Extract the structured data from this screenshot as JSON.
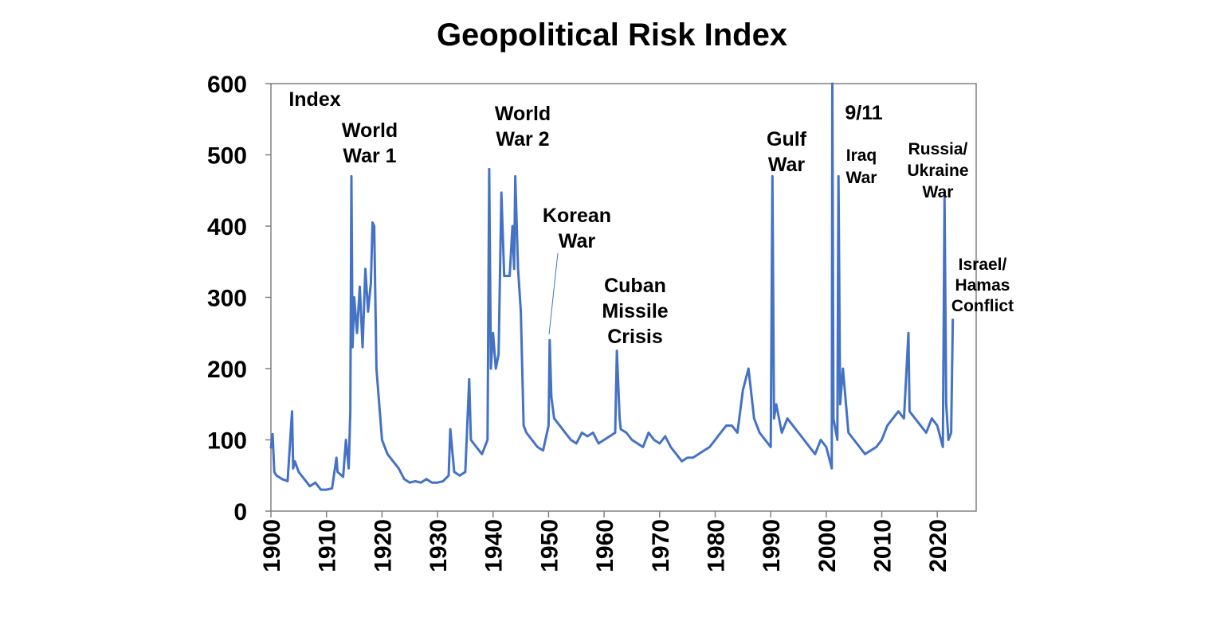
{
  "chart_data": {
    "type": "line",
    "title": "Geopolitical Risk Index",
    "ylabel": "Index",
    "ylim": [
      0,
      600
    ],
    "xlim": [
      1900,
      2027
    ],
    "yticks": [
      "0",
      "100",
      "200",
      "300",
      "400",
      "500",
      "600"
    ],
    "xticks": [
      "1900",
      "1910",
      "1920",
      "1930",
      "1940",
      "1950",
      "1960",
      "1970",
      "1980",
      "1990",
      "2000",
      "2010",
      "2020"
    ],
    "grid": false,
    "line_color": "#4472C4",
    "series": [
      {
        "x": [
          1900,
          1900.3,
          1900.6,
          1901,
          1902,
          1903,
          1903.8,
          1904,
          1904.3,
          1905,
          1906,
          1907,
          1908,
          1909,
          1910,
          1911,
          1911.8,
          1912,
          1913,
          1913.5,
          1914,
          1914.3,
          1914.5,
          1914.7,
          1915,
          1915.5,
          1916,
          1916.5,
          1917,
          1917.5,
          1918,
          1918.3,
          1918.6,
          1919,
          1919.5,
          1920,
          1921,
          1922,
          1923,
          1924,
          1925,
          1926,
          1927,
          1928,
          1929,
          1930,
          1931,
          1932,
          1932.3,
          1933,
          1934,
          1935,
          1935.7,
          1936,
          1937,
          1938,
          1939,
          1939.3,
          1939.6,
          1940,
          1940.5,
          1941,
          1941.5,
          1942,
          1942.5,
          1943,
          1943.5,
          1943.8,
          1944,
          1944.5,
          1945,
          1945.5,
          1946,
          1947,
          1948,
          1949,
          1950,
          1950.2,
          1950.5,
          1951,
          1952,
          1953,
          1954,
          1955,
          1956,
          1957,
          1958,
          1959,
          1960,
          1961,
          1962,
          1962.3,
          1962.8,
          1963,
          1964,
          1965,
          1966,
          1967,
          1968,
          1969,
          1970,
          1971,
          1972,
          1973,
          1974,
          1975,
          1976,
          1977,
          1978,
          1979,
          1980,
          1981,
          1982,
          1983,
          1984,
          1985,
          1986,
          1987,
          1988,
          1989,
          1990,
          1990.3,
          1990.6,
          1991,
          1992,
          1993,
          1994,
          1995,
          1996,
          1997,
          1998,
          1999,
          2000,
          2001,
          2001.1,
          2001.3,
          2002,
          2002.2,
          2002.5,
          2003,
          2004,
          2005,
          2006,
          2007,
          2008,
          2009,
          2010,
          2011,
          2012,
          2013,
          2014,
          2014.8,
          2015,
          2016,
          2017,
          2018,
          2019,
          2020,
          2021,
          2021.3,
          2021.6,
          2022,
          2022.5,
          2022.8
        ],
        "values": [
          88,
          108,
          55,
          50,
          45,
          42,
          140,
          60,
          70,
          55,
          45,
          35,
          40,
          30,
          30,
          32,
          75,
          55,
          48,
          100,
          60,
          140,
          470,
          230,
          300,
          250,
          315,
          230,
          340,
          280,
          320,
          405,
          400,
          200,
          150,
          100,
          80,
          70,
          60,
          45,
          40,
          42,
          40,
          45,
          40,
          40,
          42,
          50,
          115,
          55,
          50,
          55,
          185,
          100,
          90,
          80,
          100,
          480,
          200,
          250,
          200,
          220,
          447,
          330,
          330,
          330,
          400,
          340,
          470,
          340,
          280,
          120,
          110,
          100,
          90,
          85,
          120,
          240,
          160,
          130,
          120,
          110,
          100,
          95,
          110,
          105,
          110,
          95,
          100,
          105,
          110,
          225,
          130,
          115,
          110,
          100,
          95,
          90,
          110,
          100,
          95,
          105,
          90,
          80,
          70,
          75,
          75,
          80,
          85,
          90,
          100,
          110,
          120,
          120,
          110,
          170,
          200,
          130,
          110,
          100,
          90,
          470,
          130,
          150,
          110,
          130,
          120,
          110,
          100,
          90,
          80,
          100,
          90,
          60,
          600,
          130,
          100,
          470,
          150,
          200,
          110,
          100,
          90,
          80,
          85,
          90,
          100,
          120,
          130,
          140,
          130,
          250,
          140,
          130,
          120,
          110,
          130,
          120,
          90,
          440,
          150,
          100,
          110,
          270
        ]
      }
    ],
    "annotations": [
      {
        "lines": [
          "Index"
        ]
      },
      {
        "lines": [
          "World",
          "War 1"
        ]
      },
      {
        "lines": [
          "World",
          "War 2"
        ]
      },
      {
        "lines": [
          "Korean",
          "War"
        ]
      },
      {
        "lines": [
          "Cuban",
          "Missile",
          "Crisis"
        ]
      },
      {
        "lines": [
          "Gulf",
          "War"
        ]
      },
      {
        "lines": [
          "9/11"
        ]
      },
      {
        "lines": [
          "Iraq",
          "War"
        ]
      },
      {
        "lines": [
          "Russia/",
          "Ukraine",
          "War"
        ]
      },
      {
        "lines": [
          "Israel/",
          "Hamas",
          "Conflict"
        ]
      }
    ]
  }
}
